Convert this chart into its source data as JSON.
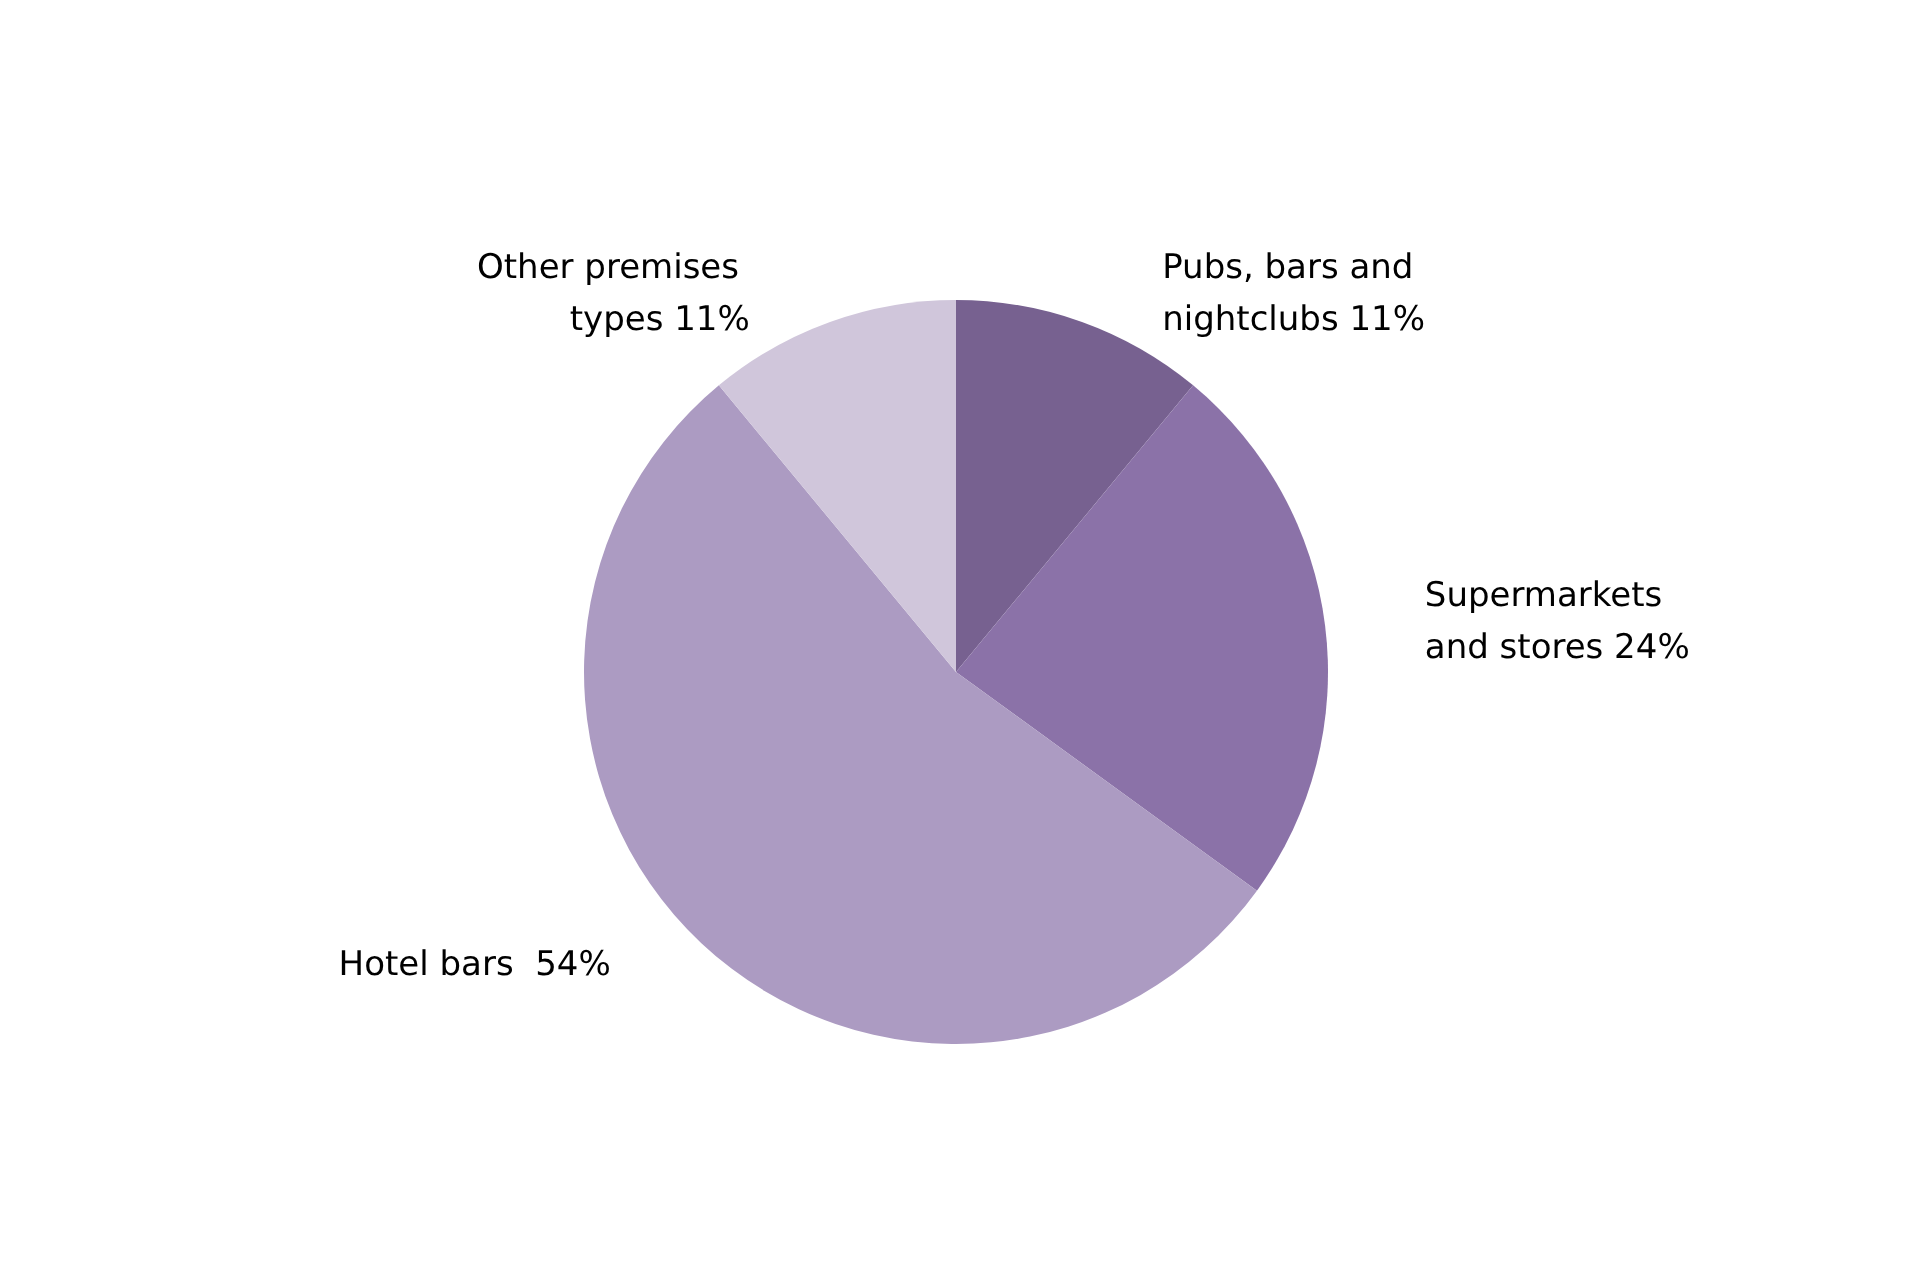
{
  "chart_data": {
    "type": "pie",
    "categories": [
      "Pubs, bars and nightclubs",
      "Supermarkets and stores",
      "Hotel bars ",
      "Other premises types"
    ],
    "values": [
      11,
      24,
      54,
      11
    ],
    "colors": [
      "#776190",
      "#8b72a8",
      "#ac9bc2",
      "#d0c6db"
    ],
    "value_labels": [
      "11%",
      "24%",
      "54%",
      "11%"
    ],
    "legend": false
  }
}
